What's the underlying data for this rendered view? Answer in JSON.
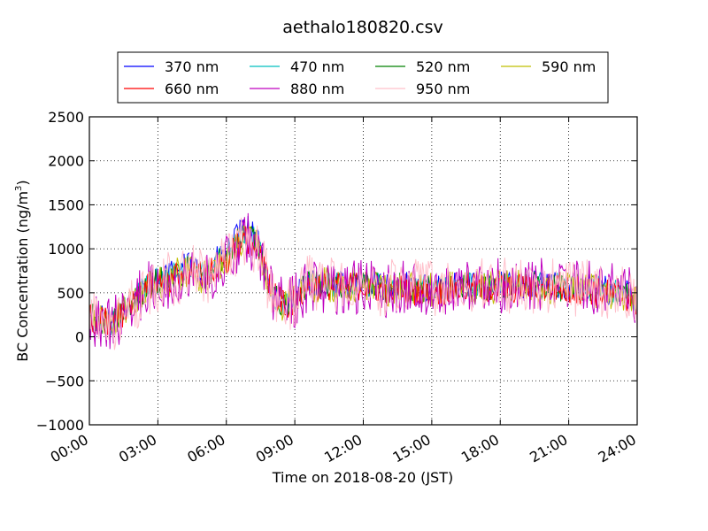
{
  "chart_data": {
    "type": "line",
    "title": "aethalo180820.csv",
    "xlabel": "Time on 2018-08-20 (JST)",
    "ylabel": "BC Concentration (ng/m",
    "ylabel_sup": "3",
    "ylabel_close": ")",
    "xlim_hours": [
      0,
      24
    ],
    "ylim": [
      -1000,
      2500
    ],
    "x_tick_labels": [
      "00:00",
      "03:00",
      "06:00",
      "09:00",
      "12:00",
      "15:00",
      "18:00",
      "21:00",
      "24:00"
    ],
    "y_tick_labels": [
      "−1000",
      "−500",
      "0",
      "500",
      "1000",
      "1500",
      "2000",
      "2500"
    ],
    "grid": true,
    "legend_placement": "top",
    "anchors_hours": [
      0,
      0.5,
      1,
      1.5,
      2,
      2.5,
      3,
      3.5,
      4,
      4.5,
      5,
      5.5,
      6,
      6.5,
      7,
      7.5,
      8,
      8.5,
      9,
      9.5,
      10,
      10.5,
      11,
      11.5,
      12,
      12.5,
      13,
      13.5,
      14,
      14.5,
      15,
      15.5,
      16,
      16.5,
      17,
      17.5,
      18,
      18.5,
      19,
      19.5,
      20,
      20.5,
      21,
      21.5,
      22,
      22.5,
      23,
      23.5,
      24
    ],
    "series": [
      {
        "name": "370 nm",
        "color": "#0000ff",
        "amp": 160,
        "values": [
          250,
          200,
          150,
          300,
          420,
          600,
          650,
          700,
          780,
          820,
          700,
          850,
          950,
          1150,
          1250,
          1000,
          500,
          380,
          450,
          620,
          620,
          620,
          600,
          620,
          620,
          600,
          560,
          600,
          570,
          560,
          560,
          560,
          580,
          590,
          600,
          580,
          600,
          580,
          600,
          610,
          590,
          590,
          560,
          580,
          560,
          540,
          520,
          500,
          430
        ]
      },
      {
        "name": "470 nm",
        "color": "#00bfbf",
        "amp": 150,
        "values": [
          240,
          190,
          150,
          300,
          410,
          590,
          640,
          690,
          760,
          800,
          690,
          830,
          930,
          1120,
          1220,
          990,
          500,
          380,
          440,
          600,
          610,
          610,
          590,
          610,
          610,
          590,
          550,
          590,
          560,
          550,
          550,
          550,
          570,
          580,
          590,
          570,
          590,
          570,
          590,
          600,
          580,
          580,
          550,
          570,
          550,
          530,
          510,
          490,
          420
        ]
      },
      {
        "name": "520 nm",
        "color": "#008000",
        "amp": 160,
        "values": [
          230,
          190,
          140,
          290,
          400,
          580,
          630,
          680,
          740,
          780,
          680,
          800,
          900,
          1080,
          1180,
          970,
          480,
          370,
          430,
          590,
          600,
          600,
          580,
          600,
          600,
          580,
          540,
          580,
          550,
          540,
          540,
          540,
          560,
          570,
          580,
          560,
          580,
          560,
          580,
          590,
          570,
          570,
          540,
          560,
          540,
          520,
          500,
          480,
          410
        ]
      },
      {
        "name": "590 nm",
        "color": "#bfbf00",
        "amp": 200,
        "values": [
          240,
          200,
          150,
          300,
          420,
          580,
          620,
          660,
          720,
          760,
          660,
          760,
          850,
          1050,
          1150,
          950,
          470,
          360,
          420,
          570,
          590,
          590,
          570,
          590,
          590,
          570,
          530,
          570,
          540,
          530,
          530,
          530,
          550,
          560,
          570,
          550,
          570,
          550,
          570,
          580,
          560,
          560,
          530,
          550,
          530,
          510,
          490,
          470,
          400
        ]
      },
      {
        "name": "660 nm",
        "color": "#ff0000",
        "amp": 170,
        "values": [
          220,
          180,
          140,
          280,
          390,
          560,
          610,
          650,
          720,
          760,
          650,
          760,
          860,
          1030,
          1120,
          940,
          470,
          360,
          420,
          570,
          580,
          580,
          560,
          580,
          580,
          560,
          520,
          560,
          530,
          520,
          520,
          520,
          540,
          550,
          560,
          540,
          560,
          540,
          560,
          570,
          550,
          550,
          520,
          540,
          520,
          500,
          480,
          460,
          390
        ]
      },
      {
        "name": "880 nm",
        "color": "#bf00bf",
        "amp": 320,
        "values": [
          200,
          180,
          140,
          260,
          380,
          550,
          600,
          640,
          700,
          740,
          640,
          740,
          840,
          1000,
          1100,
          920,
          460,
          350,
          410,
          580,
          580,
          560,
          560,
          580,
          570,
          550,
          520,
          560,
          540,
          520,
          520,
          520,
          540,
          560,
          580,
          560,
          580,
          560,
          580,
          600,
          580,
          600,
          560,
          580,
          560,
          540,
          520,
          500,
          420
        ]
      },
      {
        "name": "950 nm",
        "color": "#ffc0cb",
        "amp": 330,
        "values": [
          200,
          160,
          120,
          250,
          360,
          540,
          590,
          640,
          700,
          740,
          640,
          740,
          840,
          1000,
          1080,
          900,
          450,
          340,
          400,
          600,
          620,
          600,
          580,
          600,
          600,
          580,
          540,
          580,
          560,
          560,
          540,
          540,
          560,
          570,
          580,
          560,
          580,
          560,
          580,
          590,
          570,
          570,
          540,
          560,
          540,
          520,
          500,
          480,
          400
        ]
      }
    ]
  }
}
